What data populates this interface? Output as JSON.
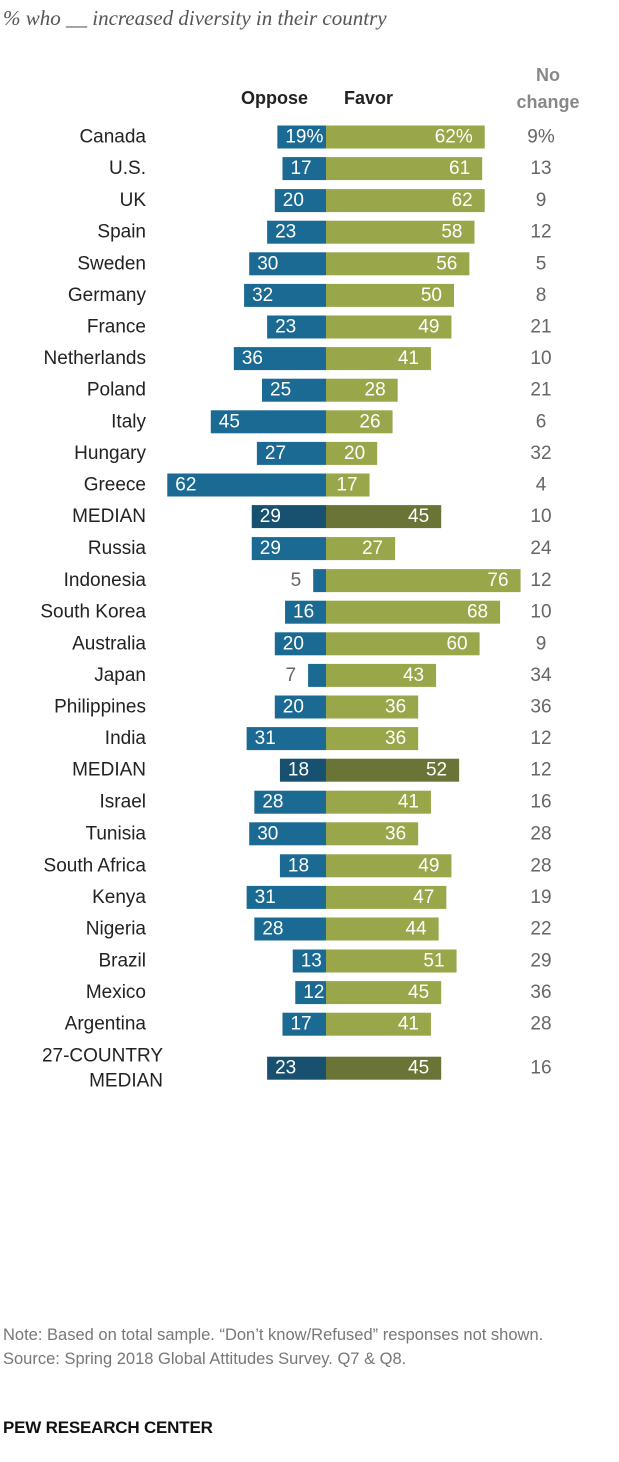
{
  "chart_data": {
    "type": "bar",
    "subtitle": "% who __ increased diversity in their country",
    "legend": {
      "oppose": "Oppose",
      "favor": "Favor",
      "no_change": "No change"
    },
    "colors": {
      "oppose": "#1b6a94",
      "favor": "#9aa64a",
      "median_oppose": "#17516f",
      "median_favor": "#6a7436"
    },
    "groups": [
      {
        "rows": [
          {
            "label": "Canada",
            "oppose": 19,
            "favor": 62,
            "no_change": 9,
            "oppose_text": "19%",
            "favor_text": "62%",
            "no_change_text": "9%"
          },
          {
            "label": "U.S.",
            "oppose": 17,
            "favor": 61,
            "no_change": 13,
            "oppose_text": "17",
            "favor_text": "61",
            "no_change_text": "13"
          }
        ]
      },
      {
        "rows": [
          {
            "label": "UK",
            "oppose": 20,
            "favor": 62,
            "no_change": 9,
            "oppose_text": "20",
            "favor_text": "62",
            "no_change_text": "9"
          },
          {
            "label": "Spain",
            "oppose": 23,
            "favor": 58,
            "no_change": 12,
            "oppose_text": "23",
            "favor_text": "58",
            "no_change_text": "12"
          },
          {
            "label": "Sweden",
            "oppose": 30,
            "favor": 56,
            "no_change": 5,
            "oppose_text": "30",
            "favor_text": "56",
            "no_change_text": "5"
          },
          {
            "label": "Germany",
            "oppose": 32,
            "favor": 50,
            "no_change": 8,
            "oppose_text": "32",
            "favor_text": "50",
            "no_change_text": "8"
          },
          {
            "label": "France",
            "oppose": 23,
            "favor": 49,
            "no_change": 21,
            "oppose_text": "23",
            "favor_text": "49",
            "no_change_text": "21"
          },
          {
            "label": "Netherlands",
            "oppose": 36,
            "favor": 41,
            "no_change": 10,
            "oppose_text": "36",
            "favor_text": "41",
            "no_change_text": "10"
          },
          {
            "label": "Poland",
            "oppose": 25,
            "favor": 28,
            "no_change": 21,
            "oppose_text": "25",
            "favor_text": "28",
            "no_change_text": "21"
          },
          {
            "label": "Italy",
            "oppose": 45,
            "favor": 26,
            "no_change": 6,
            "oppose_text": "45",
            "favor_text": "26",
            "no_change_text": "6"
          },
          {
            "label": "Hungary",
            "oppose": 27,
            "favor": 20,
            "no_change": 32,
            "oppose_text": "27",
            "favor_text": "20",
            "no_change_text": "32"
          },
          {
            "label": "Greece",
            "oppose": 62,
            "favor": 17,
            "no_change": 4,
            "oppose_text": "62",
            "favor_text": "17",
            "no_change_text": "4"
          },
          {
            "label": "MEDIAN",
            "oppose": 29,
            "favor": 45,
            "no_change": 10,
            "oppose_text": "29",
            "favor_text": "45",
            "no_change_text": "10",
            "median": true
          }
        ]
      },
      {
        "rows": [
          {
            "label": "Russia",
            "oppose": 29,
            "favor": 27,
            "no_change": 24,
            "oppose_text": "29",
            "favor_text": "27",
            "no_change_text": "24"
          }
        ]
      },
      {
        "rows": [
          {
            "label": "Indonesia",
            "oppose": 5,
            "favor": 76,
            "no_change": 12,
            "oppose_text": "5",
            "favor_text": "76",
            "no_change_text": "12"
          },
          {
            "label": "South Korea",
            "oppose": 16,
            "favor": 68,
            "no_change": 10,
            "oppose_text": "16",
            "favor_text": "68",
            "no_change_text": "10"
          },
          {
            "label": "Australia",
            "oppose": 20,
            "favor": 60,
            "no_change": 9,
            "oppose_text": "20",
            "favor_text": "60",
            "no_change_text": "9"
          },
          {
            "label": "Japan",
            "oppose": 7,
            "favor": 43,
            "no_change": 34,
            "oppose_text": "7",
            "favor_text": "43",
            "no_change_text": "34"
          },
          {
            "label": "Philippines",
            "oppose": 20,
            "favor": 36,
            "no_change": 36,
            "oppose_text": "20",
            "favor_text": "36",
            "no_change_text": "36"
          },
          {
            "label": "India",
            "oppose": 31,
            "favor": 36,
            "no_change": 12,
            "oppose_text": "31",
            "favor_text": "36",
            "no_change_text": "12"
          },
          {
            "label": "MEDIAN",
            "oppose": 18,
            "favor": 52,
            "no_change": 12,
            "oppose_text": "18",
            "favor_text": "52",
            "no_change_text": "12",
            "median": true
          }
        ]
      },
      {
        "rows": [
          {
            "label": "Israel",
            "oppose": 28,
            "favor": 41,
            "no_change": 16,
            "oppose_text": "28",
            "favor_text": "41",
            "no_change_text": "16"
          },
          {
            "label": "Tunisia",
            "oppose": 30,
            "favor": 36,
            "no_change": 28,
            "oppose_text": "30",
            "favor_text": "36",
            "no_change_text": "28"
          }
        ]
      },
      {
        "rows": [
          {
            "label": "South Africa",
            "oppose": 18,
            "favor": 49,
            "no_change": 28,
            "oppose_text": "18",
            "favor_text": "49",
            "no_change_text": "28"
          },
          {
            "label": "Kenya",
            "oppose": 31,
            "favor": 47,
            "no_change": 19,
            "oppose_text": "31",
            "favor_text": "47",
            "no_change_text": "19"
          },
          {
            "label": "Nigeria",
            "oppose": 28,
            "favor": 44,
            "no_change": 22,
            "oppose_text": "28",
            "favor_text": "44",
            "no_change_text": "22"
          }
        ]
      },
      {
        "rows": [
          {
            "label": "Brazil",
            "oppose": 13,
            "favor": 51,
            "no_change": 29,
            "oppose_text": "13",
            "favor_text": "51",
            "no_change_text": "29"
          },
          {
            "label": "Mexico",
            "oppose": 12,
            "favor": 45,
            "no_change": 36,
            "oppose_text": "12",
            "favor_text": "45",
            "no_change_text": "36"
          },
          {
            "label": "Argentina",
            "oppose": 17,
            "favor": 41,
            "no_change": 28,
            "oppose_text": "17",
            "favor_text": "41",
            "no_change_text": "28"
          }
        ]
      },
      {
        "rows": [
          {
            "label": "27-COUNTRY MEDIAN",
            "label_lines": [
              "27-COUNTRY",
              "MEDIAN"
            ],
            "oppose": 23,
            "favor": 45,
            "no_change": 16,
            "oppose_text": "23",
            "favor_text": "45",
            "no_change_text": "16",
            "median": true
          }
        ]
      }
    ]
  },
  "note": "Note: Based on total sample. “Don’t know/Refused” responses not shown.",
  "source": "Source: Spring 2018 Global Attitudes Survey. Q7 & Q8.",
  "brand": "PEW RESEARCH CENTER"
}
